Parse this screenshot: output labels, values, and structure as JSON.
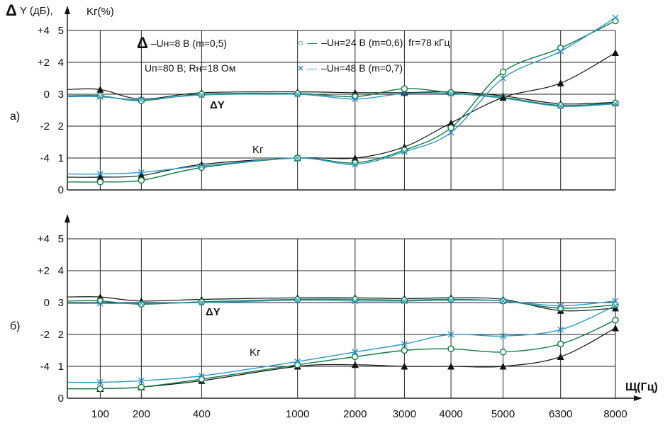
{
  "figure": {
    "axis_titles": {
      "left_delta": "Δ",
      "left_rest": "Y (дБ),",
      "right": "Kг(%)",
      "x": "Щ(Гц)"
    },
    "panel_labels": {
      "a": "а)",
      "b": "б)"
    },
    "legend": [
      {
        "marker": "triangle",
        "color": "#111111",
        "label": "–Uн=8 В (m=0,5)"
      },
      {
        "marker": "circle",
        "color": "#0e7d40",
        "label": "–Uн=24 В (m=0,6); fг=78 кГц"
      },
      {
        "marker": "cross",
        "color": "#2b96cc",
        "label": "–Uн=48 В (m=0,7)"
      }
    ],
    "conditions": "Uп=80 В; Rн=18 Ом",
    "annotations": {
      "dy": "ΔY",
      "kg": "Kг"
    },
    "glyphs": {
      "triangle": "Δ",
      "circle": "○",
      "cross": "×",
      "dash": "—"
    }
  },
  "chart_data": [
    {
      "type": "line",
      "panel": "а",
      "x_categories": [
        100,
        200,
        400,
        1000,
        2000,
        3000,
        4000,
        5000,
        6300,
        8000
      ],
      "x_axis_label": "Щ(Гц)",
      "y_left_label": "ΔY (дБ)",
      "y_left_ticks": [
        "+4",
        "+2",
        "0",
        "-2",
        "-4"
      ],
      "y_left_range": [
        -6,
        4
      ],
      "y_right_label": "Kг(%)",
      "y_right_ticks": [
        "5",
        "4",
        "3",
        "2",
        "1",
        "0"
      ],
      "y_right_range": [
        0,
        5
      ],
      "grid": true,
      "series": [
        {
          "name": "ΔY — Uн=8 В (m=0,5)",
          "quantity": "dy",
          "marker": "triangle",
          "color": "#111111",
          "values": [
            0.3,
            -0.3,
            0.1,
            0.15,
            0.1,
            0.1,
            0.15,
            -0.1,
            -0.6,
            -0.5
          ]
        },
        {
          "name": "ΔY — Uн=24 В (m=0,6)",
          "quantity": "dy",
          "marker": "circle",
          "color": "#0e7d40",
          "values": [
            -0.1,
            -0.4,
            0.0,
            0.05,
            -0.15,
            0.35,
            0.1,
            -0.2,
            -0.7,
            -0.55
          ]
        },
        {
          "name": "ΔY — Uн=48 В (m=0,7)",
          "quantity": "dy",
          "marker": "cross",
          "color": "#2b96cc",
          "values": [
            -0.15,
            -0.35,
            -0.05,
            0.0,
            -0.3,
            0.05,
            0.05,
            -0.25,
            -0.75,
            -0.6
          ]
        },
        {
          "name": "Kг — Uн=8 В (m=0,5)",
          "quantity": "kg",
          "marker": "triangle",
          "color": "#111111",
          "values": [
            0.4,
            0.45,
            0.8,
            1.0,
            1.0,
            1.35,
            2.1,
            2.9,
            3.35,
            4.3
          ]
        },
        {
          "name": "Kг — Uн=24 В (m=0,6)",
          "quantity": "kg",
          "marker": "circle",
          "color": "#0e7d40",
          "values": [
            0.25,
            0.3,
            0.7,
            1.0,
            0.85,
            1.25,
            1.95,
            3.7,
            4.45,
            5.3
          ]
        },
        {
          "name": "Kг — Uн=48 В (m=0,7)",
          "quantity": "kg",
          "marker": "cross",
          "color": "#2b96cc",
          "values": [
            0.5,
            0.55,
            0.75,
            1.0,
            0.8,
            1.2,
            1.8,
            3.5,
            4.35,
            5.4
          ]
        }
      ]
    },
    {
      "type": "line",
      "panel": "б",
      "x_categories": [
        100,
        200,
        400,
        1000,
        2000,
        3000,
        4000,
        5000,
        6300,
        8000
      ],
      "x_axis_label": "Щ(Гц)",
      "y_left_label": "ΔY (дБ)",
      "y_left_ticks": [
        "+4",
        "+2",
        "0",
        "-2",
        "-4"
      ],
      "y_left_range": [
        -6,
        4
      ],
      "y_right_label": "Kг(%)",
      "y_right_ticks": [
        "5",
        "4",
        "3",
        "2",
        "1",
        "0"
      ],
      "y_right_range": [
        0,
        5
      ],
      "grid": true,
      "series": [
        {
          "name": "ΔY — Uн=8 В (m=0,5)",
          "quantity": "dy",
          "marker": "triangle",
          "color": "#111111",
          "values": [
            0.35,
            0.1,
            0.2,
            0.3,
            0.3,
            0.25,
            0.3,
            0.2,
            -0.5,
            -0.35
          ]
        },
        {
          "name": "ΔY — Uн=24 В (m=0,6)",
          "quantity": "dy",
          "marker": "circle",
          "color": "#0e7d40",
          "values": [
            0.1,
            -0.1,
            0.05,
            0.2,
            0.2,
            0.15,
            0.2,
            0.1,
            -0.35,
            -0.15
          ]
        },
        {
          "name": "ΔY — Uн=48 В (m=0,7)",
          "quantity": "dy",
          "marker": "cross",
          "color": "#2b96cc",
          "values": [
            -0.05,
            -0.05,
            0.0,
            0.15,
            0.1,
            0.1,
            0.15,
            0.1,
            -0.2,
            0.1
          ]
        },
        {
          "name": "Kг — Uн=8 В (m=0,5)",
          "quantity": "kg",
          "marker": "triangle",
          "color": "#111111",
          "values": [
            0.3,
            0.35,
            0.55,
            1.0,
            1.05,
            1.0,
            1.0,
            1.0,
            1.3,
            2.2
          ]
        },
        {
          "name": "Kг — Uн=24 В (m=0,6)",
          "quantity": "kg",
          "marker": "circle",
          "color": "#0e7d40",
          "values": [
            0.3,
            0.35,
            0.6,
            1.05,
            1.3,
            1.5,
            1.55,
            1.45,
            1.7,
            2.45
          ]
        },
        {
          "name": "Kг — Uн=48 В (m=0,7)",
          "quantity": "kg",
          "marker": "cross",
          "color": "#2b96cc",
          "values": [
            0.5,
            0.55,
            0.7,
            1.15,
            1.45,
            1.7,
            2.0,
            1.95,
            2.15,
            2.9
          ]
        }
      ]
    }
  ]
}
